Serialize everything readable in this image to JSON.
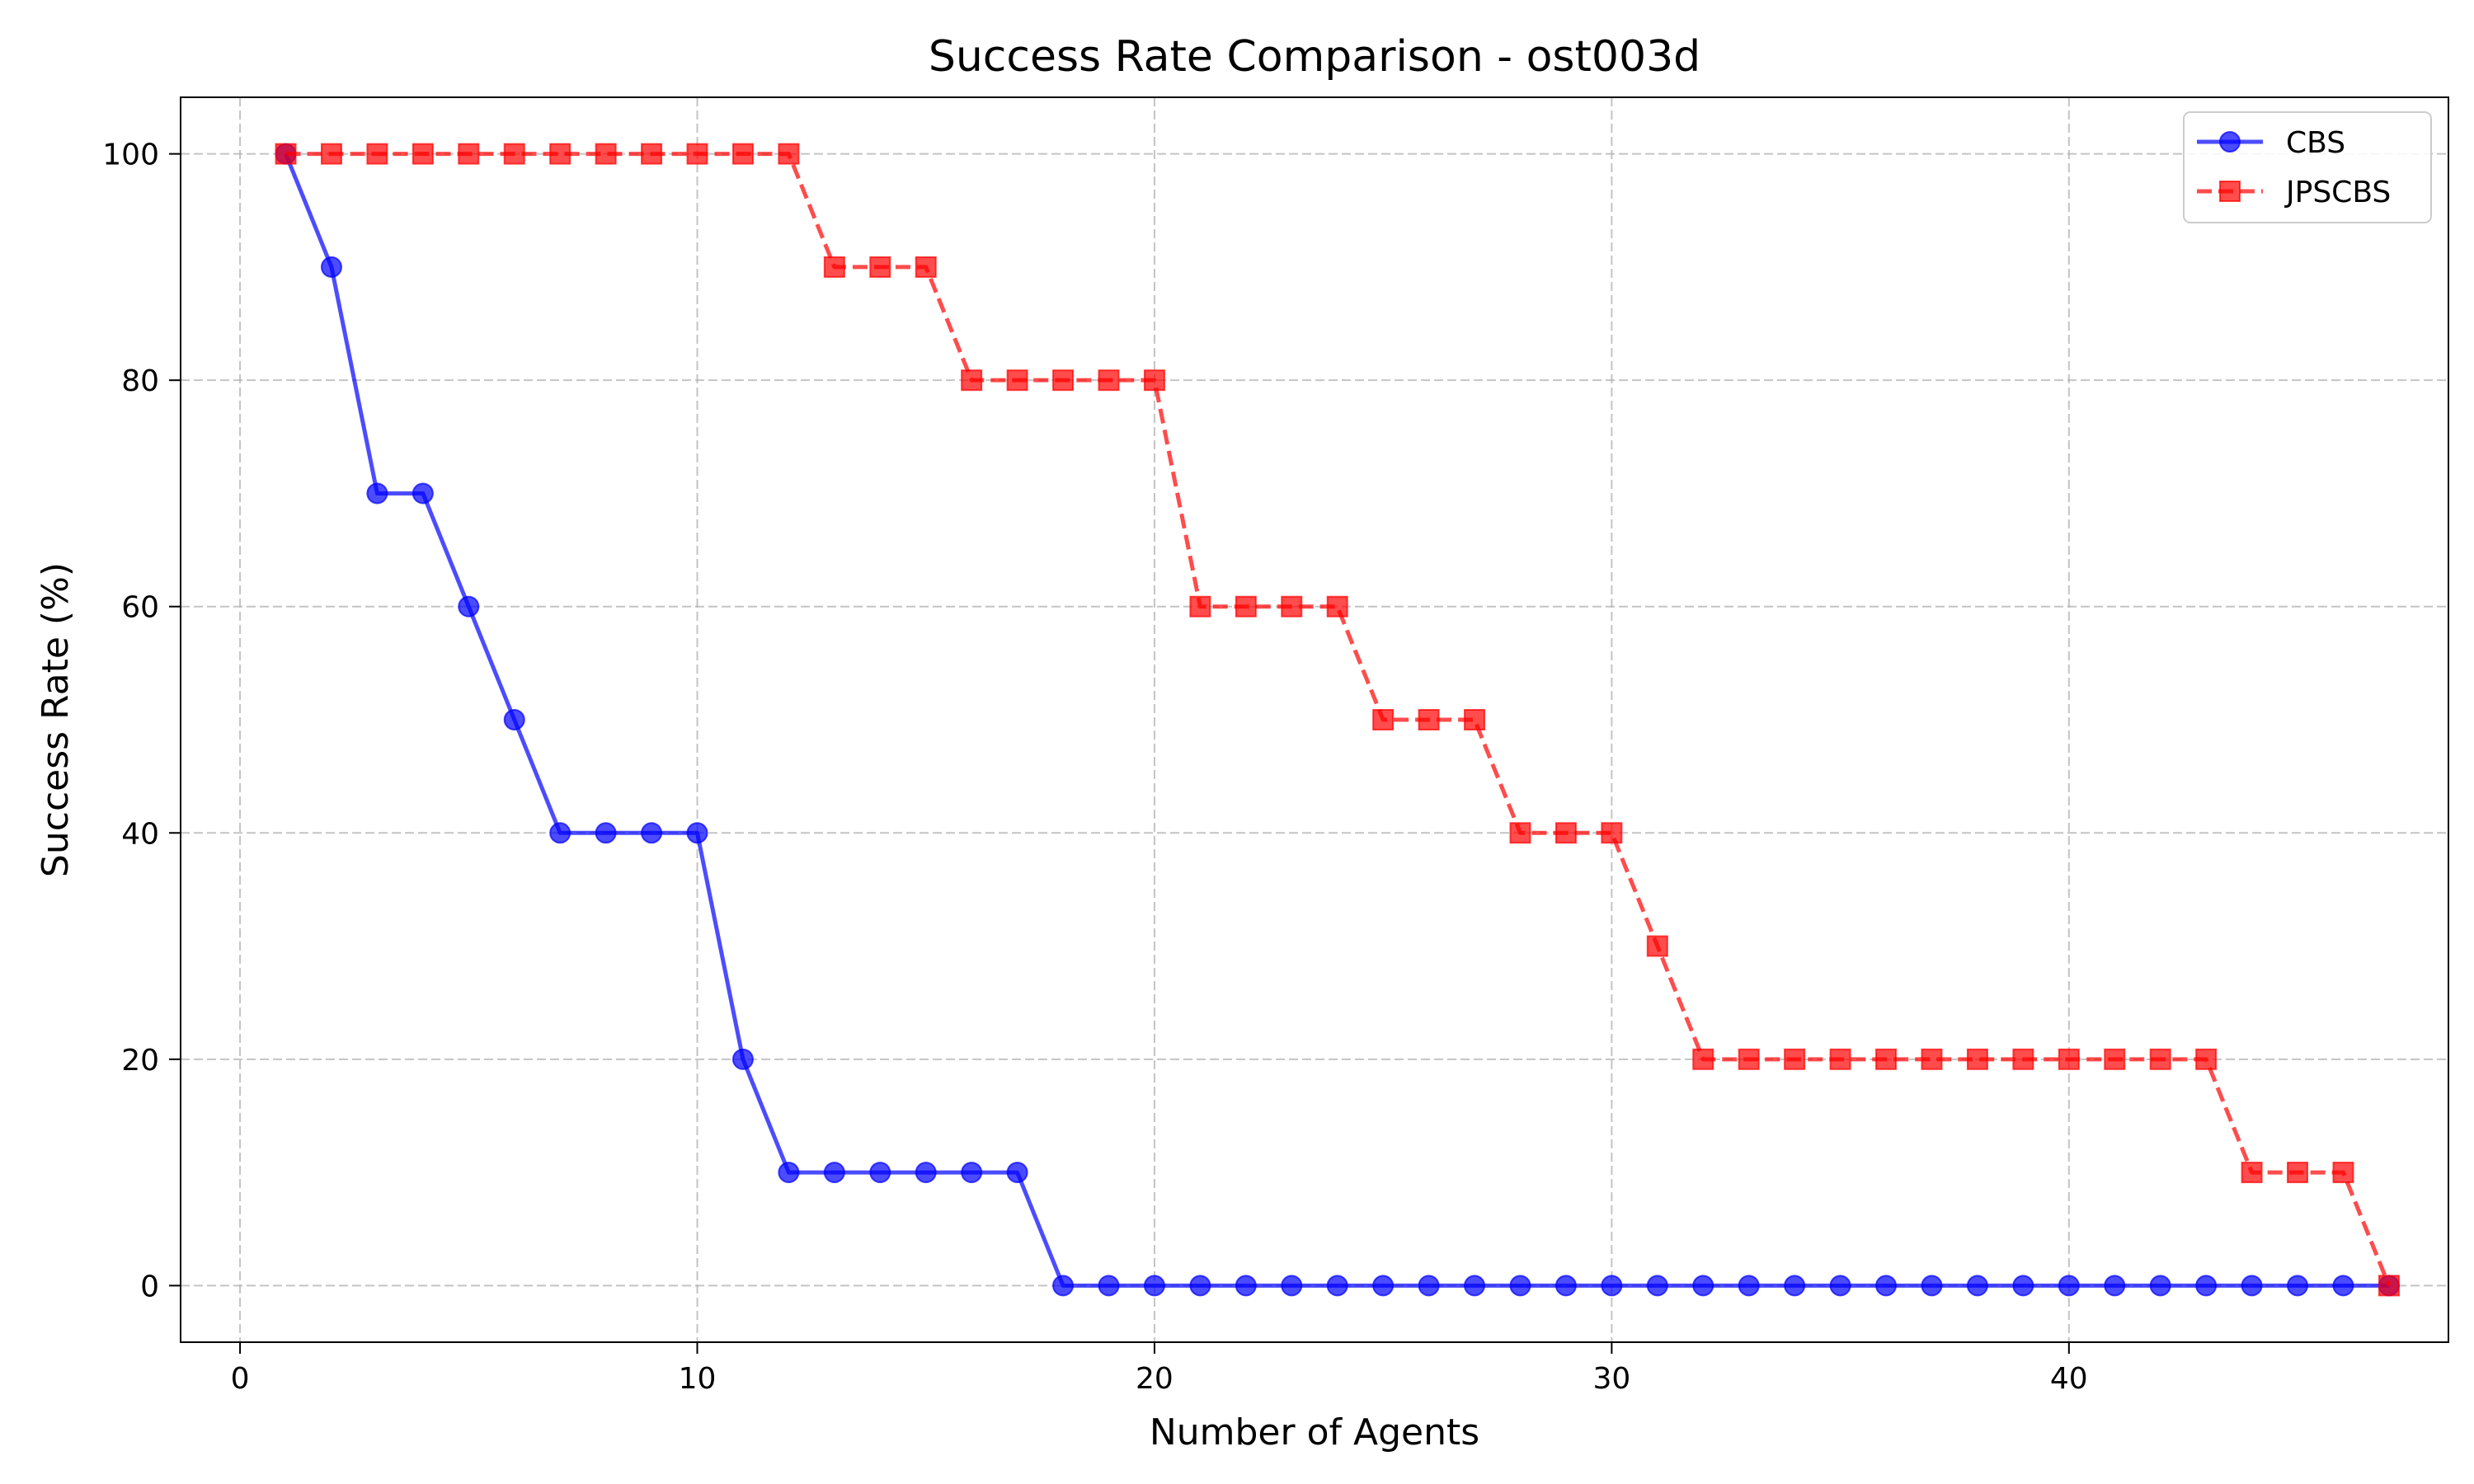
{
  "chart_data": {
    "type": "line",
    "title": "Success Rate Comparison - ost003d",
    "xlabel": "Number of Agents",
    "ylabel": "Success Rate (%)",
    "xlim": [
      -1.3,
      48.3
    ],
    "ylim": [
      -5,
      105
    ],
    "xticks": [
      0,
      10,
      20,
      30,
      40
    ],
    "yticks": [
      0,
      20,
      40,
      60,
      80,
      100
    ],
    "grid": true,
    "legend_position": "top-right",
    "x": [
      1,
      2,
      3,
      4,
      5,
      6,
      7,
      8,
      9,
      10,
      11,
      12,
      13,
      14,
      15,
      16,
      17,
      18,
      19,
      20,
      21,
      22,
      23,
      24,
      25,
      26,
      27,
      28,
      29,
      30,
      31,
      32,
      33,
      34,
      35,
      36,
      37,
      38,
      39,
      40,
      41,
      42,
      43,
      44,
      45,
      46,
      47
    ],
    "series": [
      {
        "name": "CBS",
        "color": "#0000ff",
        "line_style": "solid",
        "marker": "circle",
        "values": [
          100,
          90,
          70,
          70,
          60,
          50,
          40,
          40,
          40,
          40,
          20,
          10,
          10,
          10,
          10,
          10,
          10,
          0,
          0,
          0,
          0,
          0,
          0,
          0,
          0,
          0,
          0,
          0,
          0,
          0,
          0,
          0,
          0,
          0,
          0,
          0,
          0,
          0,
          0,
          0,
          0,
          0,
          0,
          0,
          0,
          0,
          0
        ]
      },
      {
        "name": "JPSCBS",
        "color": "#ff0000",
        "line_style": "dashed",
        "marker": "square",
        "values": [
          100,
          100,
          100,
          100,
          100,
          100,
          100,
          100,
          100,
          100,
          100,
          100,
          90,
          90,
          90,
          80,
          80,
          80,
          80,
          80,
          60,
          60,
          60,
          60,
          50,
          50,
          50,
          40,
          40,
          40,
          30,
          20,
          20,
          20,
          20,
          20,
          20,
          20,
          20,
          20,
          20,
          20,
          20,
          10,
          10,
          10,
          0
        ]
      }
    ]
  }
}
